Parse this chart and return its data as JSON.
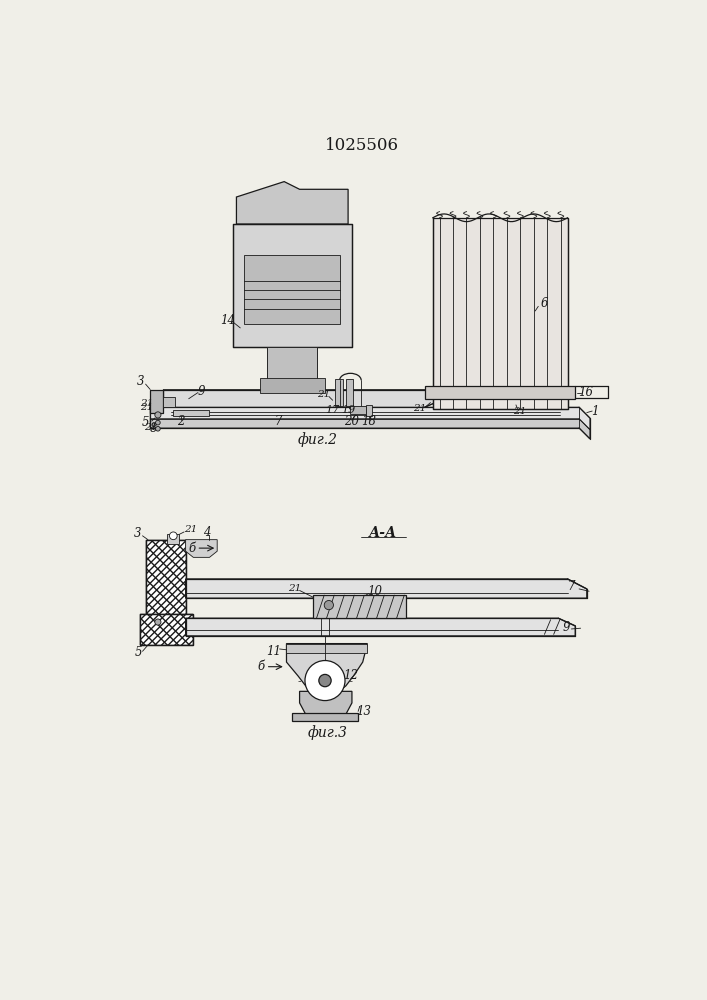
{
  "title": "1025506",
  "fig2_caption": "фиг.2",
  "fig3_caption": "фиг.3",
  "fig3_section_label": "А-А",
  "bg": "#f0efe8",
  "lc": "#1a1a1a",
  "title_fontsize": 12,
  "caption_fontsize": 10,
  "lbl_fs": 8.5
}
